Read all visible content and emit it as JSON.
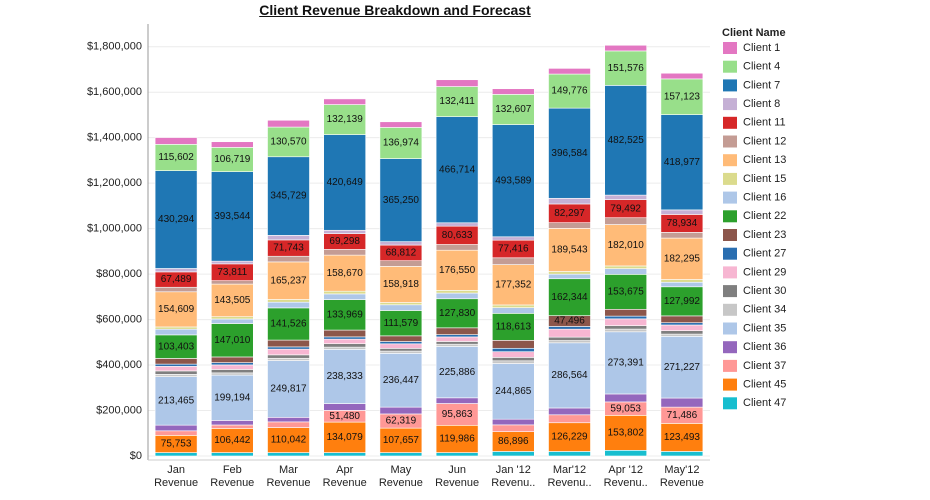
{
  "chart_data": {
    "type": "stacked_bar",
    "title": "Client Revenue Breakdown and Forecast",
    "legend_title": "Client Name",
    "legend_position": "right",
    "grid": true,
    "categories": [
      "Jan Revenue",
      "Feb Revenue",
      "Mar Revenue",
      "Apr Revenue",
      "May Revenue",
      "Jun Revenue",
      "Jan '12 Revenu..",
      "Mar'12 Revenu..",
      "Apr '12 Revenu..",
      "May'12 Revenue"
    ],
    "ylim": [
      0,
      1900000
    ],
    "yticks": [
      {
        "value": 0,
        "label": "$0"
      },
      {
        "value": 200000,
        "label": "$200,000"
      },
      {
        "value": 400000,
        "label": "$400,000"
      },
      {
        "value": 600000,
        "label": "$600,000"
      },
      {
        "value": 800000,
        "label": "$800,000"
      },
      {
        "value": 1000000,
        "label": "$1,000,000"
      },
      {
        "value": 1200000,
        "label": "$1,200,000"
      },
      {
        "value": 1400000,
        "label": "$1,400,000"
      },
      {
        "value": 1600000,
        "label": "$1,600,000"
      },
      {
        "value": 1800000,
        "label": "$1,800,000"
      }
    ],
    "series": [
      {
        "name": "Client 1",
        "color": "#e377c2",
        "values": [
          30000,
          25000,
          30000,
          25000,
          25000,
          30000,
          25000,
          25000,
          25000,
          25000
        ]
      },
      {
        "name": "Client 4",
        "color": "#98df8a",
        "values": [
          115602,
          106719,
          130570,
          132139,
          136974,
          132411,
          132607,
          149776,
          151576,
          157123
        ],
        "value_labels": [
          "115,602",
          "106,719",
          "130,570",
          "132,139",
          "136,974",
          "132,411",
          "132,607",
          "149,776",
          "151,576",
          "157,123"
        ]
      },
      {
        "name": "Client 7",
        "color": "#1f77b4",
        "values": [
          430294,
          393544,
          345729,
          420649,
          365250,
          466714,
          493589,
          396584,
          482525,
          418977
        ],
        "value_labels": [
          "430,294",
          "393,544",
          "345,729",
          "420,649",
          "365,250",
          "466,714",
          "493,589",
          "396,584",
          "482,525",
          "418,977"
        ]
      },
      {
        "name": "Client 8",
        "color": "#c5b0d5",
        "values": [
          15000,
          12000,
          20000,
          15000,
          15000,
          15000,
          15000,
          25000,
          20000,
          20000
        ]
      },
      {
        "name": "Client 11",
        "color": "#d62728",
        "values": [
          67489,
          73811,
          71743,
          69298,
          68812,
          80633,
          77416,
          82297,
          79492,
          78934
        ],
        "value_labels": [
          "67,489",
          "73,811",
          "71,743",
          "69,298",
          "68,812",
          "80,633",
          "77,416",
          "82,297",
          "79,492",
          "78,934"
        ]
      },
      {
        "name": "Client 12",
        "color": "#c49c94",
        "values": [
          20000,
          15000,
          25000,
          25000,
          25000,
          25000,
          30000,
          25000,
          30000,
          25000
        ]
      },
      {
        "name": "Client 13",
        "color": "#ffbb78",
        "values": [
          154609,
          143505,
          165237,
          158670,
          158918,
          176550,
          177352,
          189543,
          182010,
          182295
        ],
        "value_labels": [
          "154,609",
          "143,505",
          "165,237",
          "158,670",
          "158,918",
          "176,550",
          "177,352",
          "189,543",
          "182,010",
          "182,295"
        ]
      },
      {
        "name": "Client 15",
        "color": "#dbdb8d",
        "values": [
          10000,
          10000,
          12000,
          12000,
          10000,
          12000,
          12000,
          12000,
          12000,
          12000
        ]
      },
      {
        "name": "Client 16",
        "color": "#aec7e8",
        "values": [
          25000,
          20000,
          25000,
          25000,
          25000,
          25000,
          25000,
          20000,
          25000,
          20000
        ]
      },
      {
        "name": "Client 22",
        "color": "#2ca02c",
        "values": [
          103403,
          147010,
          141526,
          133969,
          111579,
          127830,
          118613,
          162344,
          153675,
          127992
        ],
        "value_labels": [
          "103,403",
          "147,010",
          "141,526",
          "133,969",
          "111,579",
          "127,830",
          "118,613",
          "162,344",
          "153,675",
          "127,992"
        ]
      },
      {
        "name": "Client 23",
        "color": "#8c564b",
        "values": [
          25000,
          25000,
          30000,
          30000,
          25000,
          30000,
          35000,
          47496,
          30000,
          30000
        ],
        "value_labels": [
          null,
          null,
          null,
          null,
          null,
          null,
          null,
          "47,496",
          null,
          null
        ]
      },
      {
        "name": "Client 27",
        "color": "#2a6eb0",
        "values": [
          10000,
          10000,
          10000,
          10000,
          10000,
          10000,
          15000,
          12000,
          12000,
          10000
        ]
      },
      {
        "name": "Client 29",
        "color": "#f7b6d2",
        "values": [
          20000,
          20000,
          25000,
          20000,
          20000,
          20000,
          25000,
          35000,
          30000,
          25000
        ]
      },
      {
        "name": "Client 30",
        "color": "#7f7f7f",
        "values": [
          15000,
          15000,
          15000,
          15000,
          12000,
          12000,
          15000,
          15000,
          15000,
          15000
        ]
      },
      {
        "name": "Client 34",
        "color": "#c7c7c7",
        "values": [
          10000,
          10000,
          10000,
          10000,
          10000,
          10000,
          12000,
          10000,
          12000,
          10000
        ]
      },
      {
        "name": "Client 35",
        "color": "#aec7e8",
        "values": [
          213465,
          199194,
          249817,
          238333,
          236447,
          225886,
          244865,
          286564,
          273391,
          271227
        ],
        "value_labels": [
          "213,465",
          "199,194",
          "249,817",
          "238,333",
          "236,447",
          "225,886",
          "244,865",
          "286,564",
          "273,391",
          "271,227"
        ]
      },
      {
        "name": "Client 36",
        "color": "#9467bd",
        "values": [
          25000,
          20000,
          20000,
          30000,
          30000,
          25000,
          25000,
          30000,
          35000,
          40000
        ]
      },
      {
        "name": "Client 37",
        "color": "#ff9896",
        "values": [
          20000,
          15000,
          25000,
          51480,
          62319,
          95863,
          30000,
          35000,
          59053,
          71486
        ],
        "value_labels": [
          null,
          null,
          null,
          "51,480",
          "62,319",
          "95,863",
          null,
          null,
          "59,053",
          "71,486"
        ]
      },
      {
        "name": "Client 45",
        "color": "#ff7f0e",
        "values": [
          75753,
          106442,
          110042,
          134079,
          107657,
          119986,
          86896,
          126229,
          153802,
          123493
        ],
        "value_labels": [
          "75,753",
          "106,442",
          "110,042",
          "134,079",
          "107,657",
          "119,986",
          "86,896",
          "126,229",
          "153,802",
          "123,493"
        ]
      },
      {
        "name": "Client 47",
        "color": "#17becf",
        "values": [
          15000,
          15000,
          15000,
          15000,
          15000,
          15000,
          20000,
          20000,
          25000,
          20000
        ]
      }
    ]
  }
}
